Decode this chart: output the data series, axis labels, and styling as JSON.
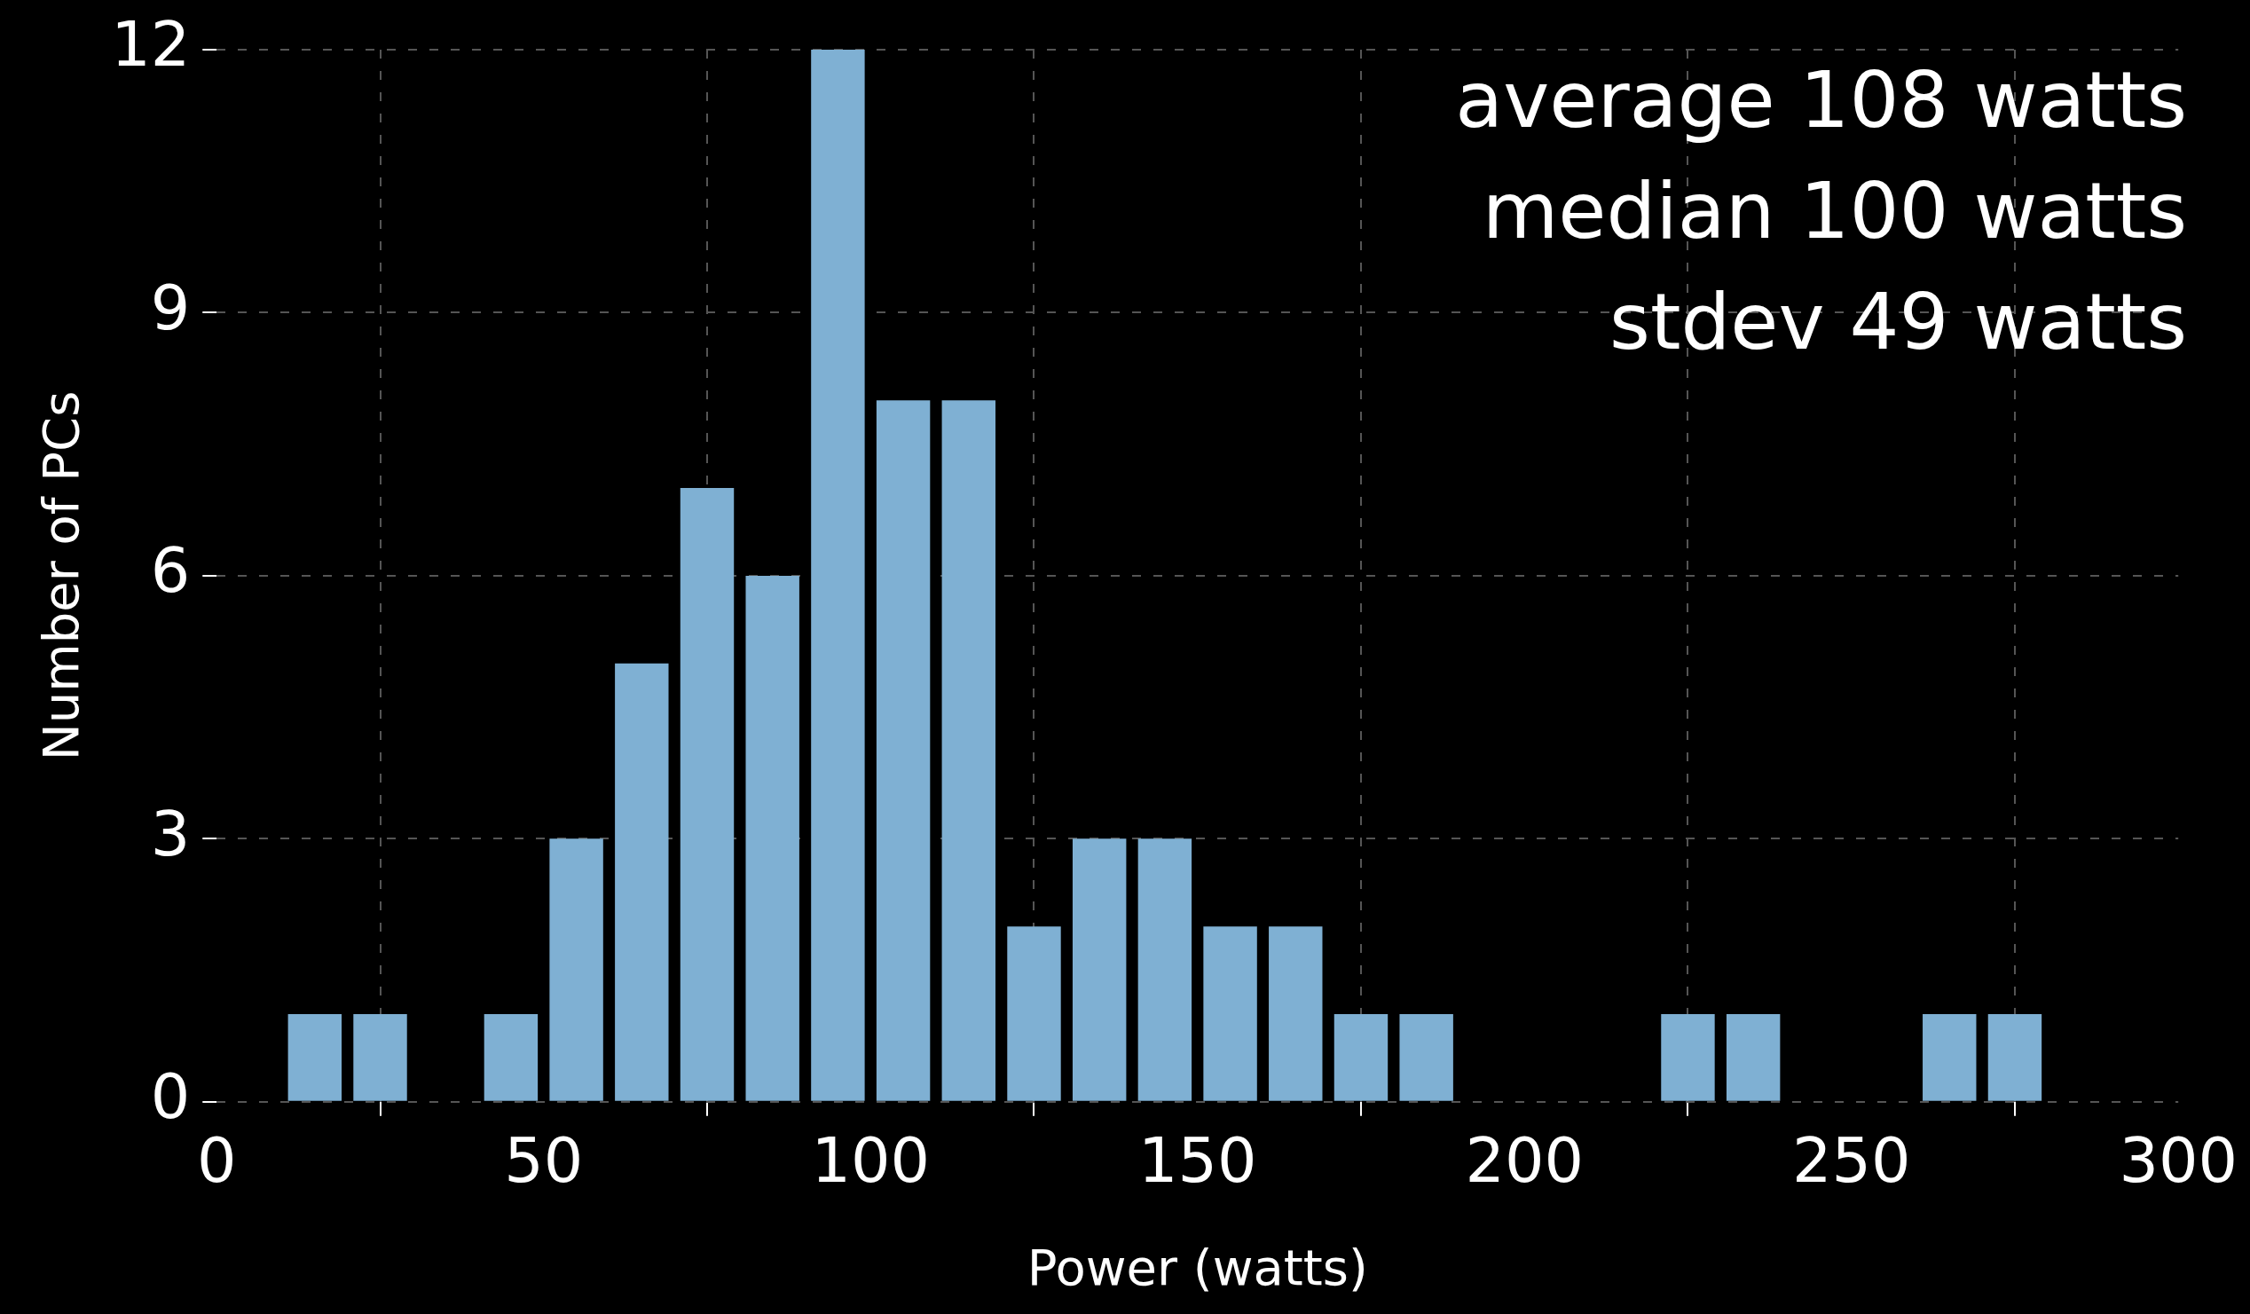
{
  "chart_data": {
    "type": "histogram",
    "xlabel": "Power (watts)",
    "ylabel": "Number of PCs",
    "bins": [
      10,
      20,
      30,
      40,
      50,
      60,
      70,
      80,
      90,
      100,
      110,
      120,
      130,
      140,
      150,
      160,
      170,
      180,
      190,
      200,
      210,
      220,
      230,
      240,
      250,
      260,
      270,
      280
    ],
    "values": [
      1,
      1,
      0,
      1,
      3,
      5,
      7,
      6,
      12,
      8,
      8,
      2,
      3,
      3,
      2,
      2,
      1,
      1,
      0,
      0,
      0,
      1,
      1,
      0,
      0,
      1,
      1
    ],
    "color": "#7fb0d3",
    "xlim": [
      0,
      300
    ],
    "xticks": [
      0,
      50,
      100,
      150,
      200,
      250,
      300
    ],
    "ylim": [
      0,
      12
    ],
    "yticks": [
      0,
      3,
      6,
      9,
      12
    ],
    "grid": true,
    "annotations": [
      "average 108 watts",
      "median 100 watts",
      "stdev 49 watts"
    ]
  }
}
